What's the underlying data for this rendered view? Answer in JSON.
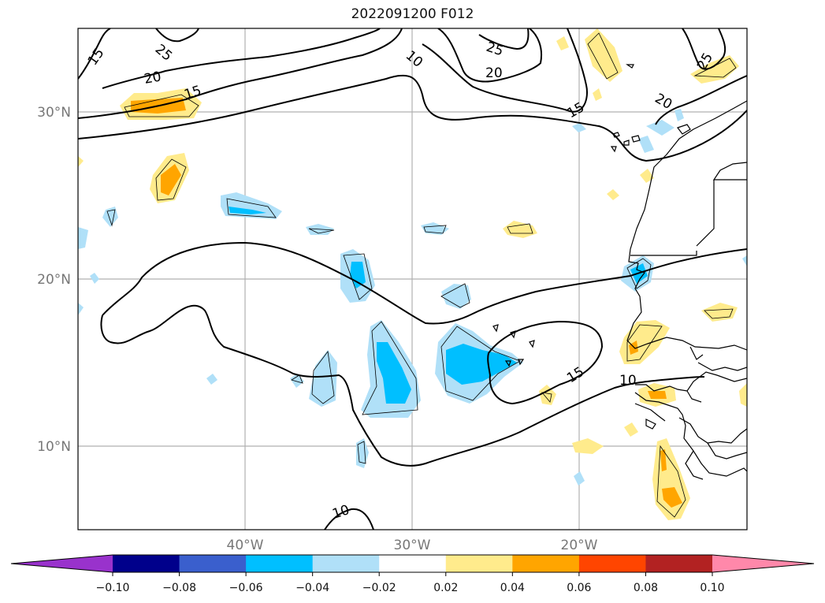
{
  "title": "2022091200 F012",
  "map": {
    "lat_labels": [
      "30°N",
      "20°N",
      "10°N"
    ],
    "lon_labels": [
      "40°W",
      "30°W",
      "20°W"
    ],
    "contour_labels": [
      "15",
      "25",
      "20",
      "15",
      "10",
      "25",
      "20",
      "15",
      "20",
      "25",
      "15",
      "10",
      "10"
    ]
  },
  "colorbar": {
    "colors": [
      "#9932cc",
      "#00008b",
      "#3a5fcd",
      "#00bfff",
      "#b0e0f8",
      "#ffffff",
      "#ffeb8c",
      "#ffa500",
      "#ff4500",
      "#b22222",
      "#ff88aa"
    ],
    "tick_labels": [
      "−0.10",
      "−0.08",
      "−0.06",
      "−0.04",
      "−0.02",
      "0.02",
      "0.04",
      "0.06",
      "0.08",
      "0.10"
    ]
  }
}
